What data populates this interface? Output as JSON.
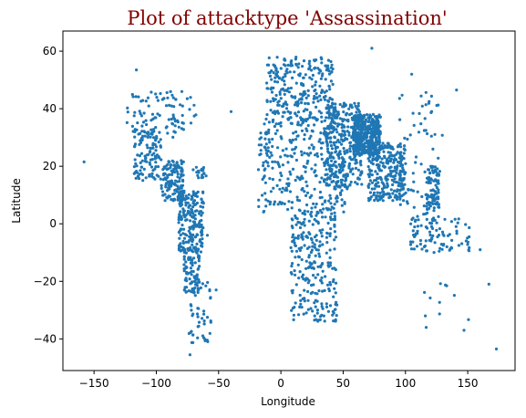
{
  "chart_data": {
    "type": "scatter",
    "title": "Plot of attacktype 'Assassination'",
    "xlabel": "Longitude",
    "ylabel": "Latitude",
    "xlim": [
      -175,
      188
    ],
    "ylim": [
      -51,
      67
    ],
    "xticks": [
      -150,
      -100,
      -50,
      0,
      50,
      100,
      150
    ],
    "yticks": [
      -40,
      -20,
      0,
      20,
      40,
      60
    ],
    "xtick_labels": [
      "−150",
      "−100",
      "−50",
      "0",
      "50",
      "100",
      "150"
    ],
    "ytick_labels": [
      "−40",
      "−20",
      "0",
      "20",
      "40",
      "60"
    ],
    "grid": false,
    "legend": "none",
    "marker_color": "#1f77b4",
    "title_color": "#800000",
    "regions": [
      {
        "lon": [
          -124,
          -68
        ],
        "lat": [
          30,
          46
        ],
        "n": 90
      },
      {
        "lon": [
          -118,
          -96
        ],
        "lat": [
          15,
          33
        ],
        "n": 110
      },
      {
        "lon": [
          -96,
          -78
        ],
        "lat": [
          8,
          22
        ],
        "n": 140
      },
      {
        "lon": [
          -82,
          -62
        ],
        "lat": [
          -10,
          12
        ],
        "n": 200
      },
      {
        "lon": [
          -78,
          -65
        ],
        "lat": [
          -24,
          -8
        ],
        "n": 90
      },
      {
        "lon": [
          -74,
          -56
        ],
        "lat": [
          -42,
          -20
        ],
        "n": 50
      },
      {
        "lon": [
          -72,
          -60
        ],
        "lat": [
          16,
          20
        ],
        "n": 20
      },
      {
        "lon": [
          -12,
          42
        ],
        "lat": [
          36,
          58
        ],
        "n": 260
      },
      {
        "lon": [
          -18,
          52
        ],
        "lat": [
          4,
          36
        ],
        "n": 320
      },
      {
        "lon": [
          8,
          45
        ],
        "lat": [
          -34,
          5
        ],
        "n": 260
      },
      {
        "lon": [
          35,
          65
        ],
        "lat": [
          12,
          42
        ],
        "n": 300
      },
      {
        "lon": [
          58,
          80
        ],
        "lat": [
          24,
          38
        ],
        "n": 420
      },
      {
        "lon": [
          70,
          100
        ],
        "lat": [
          8,
          28
        ],
        "n": 280
      },
      {
        "lon": [
          95,
          130
        ],
        "lat": [
          0,
          46
        ],
        "n": 70
      },
      {
        "lon": [
          117,
          127
        ],
        "lat": [
          5,
          20
        ],
        "n": 90
      },
      {
        "lon": [
          104,
          152
        ],
        "lat": [
          -10,
          2
        ],
        "n": 90
      },
      {
        "lon": [
          113,
          155
        ],
        "lat": [
          -38,
          -20
        ],
        "n": 10
      }
    ],
    "outliers": [
      {
        "x": -158,
        "y": 21.5
      },
      {
        "x": -116,
        "y": 53.5
      },
      {
        "x": -73,
        "y": -45.5
      },
      {
        "x": -59,
        "y": -4
      },
      {
        "x": -52,
        "y": -23
      },
      {
        "x": -40,
        "y": 39
      },
      {
        "x": 73,
        "y": 61
      },
      {
        "x": 105,
        "y": 52
      },
      {
        "x": 141,
        "y": 46.5
      },
      {
        "x": 116,
        "y": -32
      },
      {
        "x": 147,
        "y": -37
      },
      {
        "x": 167,
        "y": -21
      },
      {
        "x": 173,
        "y": -43.5
      },
      {
        "x": 160,
        "y": -9
      }
    ]
  }
}
